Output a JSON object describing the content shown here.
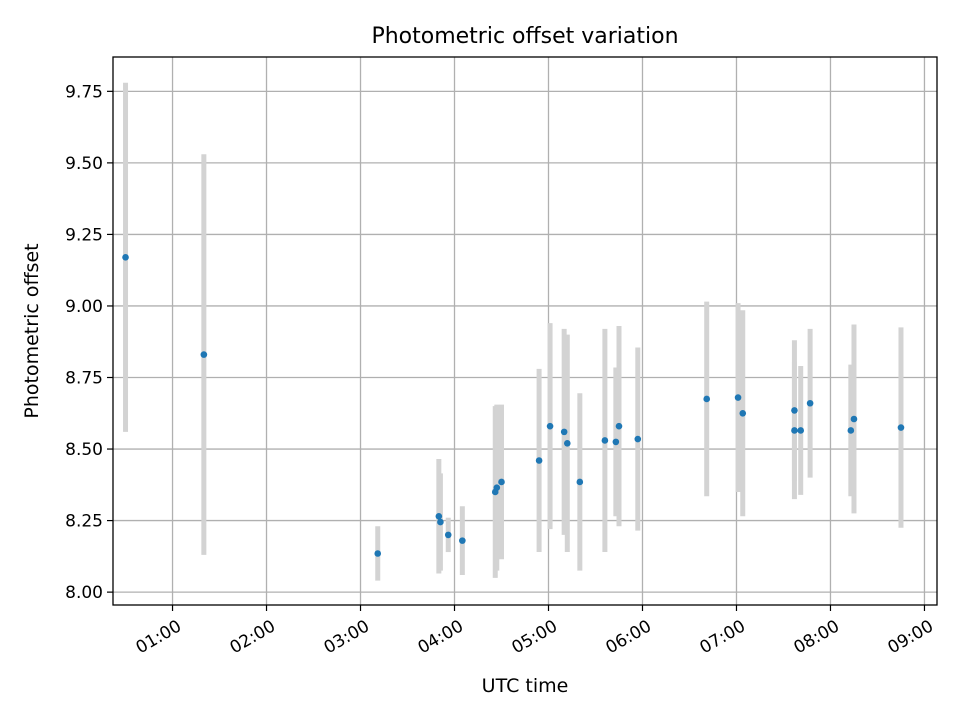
{
  "chart_data": {
    "type": "scatter",
    "title": "Photometric offset variation",
    "xlabel": "UTC time",
    "ylabel": "Photometric offset",
    "xlim": [
      "00:22",
      "09:08"
    ],
    "ylim": [
      7.955,
      9.87
    ],
    "grid": true,
    "x_ticks": [
      "01:00",
      "02:00",
      "03:00",
      "04:00",
      "05:00",
      "06:00",
      "07:00",
      "08:00",
      "09:00"
    ],
    "y_ticks": [
      "8.00",
      "8.25",
      "8.50",
      "8.75",
      "9.00",
      "9.25",
      "9.50",
      "9.75"
    ],
    "colors": {
      "point": "#1f77b4",
      "errorbar": "#d3d3d3",
      "grid": "#b0b0b0"
    },
    "series": [
      {
        "points": [
          {
            "x": "00:30",
            "y": 9.17,
            "err": 0.61
          },
          {
            "x": "01:20",
            "y": 8.83,
            "err": 0.7
          },
          {
            "x": "03:11",
            "y": 8.135,
            "err": 0.095
          },
          {
            "x": "03:50",
            "y": 8.265,
            "err": 0.2
          },
          {
            "x": "03:51",
            "y": 8.245,
            "err": 0.17
          },
          {
            "x": "03:56",
            "y": 8.2,
            "err": 0.06
          },
          {
            "x": "04:05",
            "y": 8.18,
            "err": 0.12
          },
          {
            "x": "04:26",
            "y": 8.35,
            "err": 0.3
          },
          {
            "x": "04:27",
            "y": 8.365,
            "err": 0.29
          },
          {
            "x": "04:30",
            "y": 8.385,
            "err": 0.27
          },
          {
            "x": "04:54",
            "y": 8.46,
            "err": 0.32
          },
          {
            "x": "05:01",
            "y": 8.58,
            "err": 0.36
          },
          {
            "x": "05:10",
            "y": 8.56,
            "err": 0.36
          },
          {
            "x": "05:12",
            "y": 8.52,
            "err": 0.38
          },
          {
            "x": "05:20",
            "y": 8.385,
            "err": 0.31
          },
          {
            "x": "05:36",
            "y": 8.53,
            "err": 0.39
          },
          {
            "x": "05:43",
            "y": 8.525,
            "err": 0.26
          },
          {
            "x": "05:45",
            "y": 8.58,
            "err": 0.35
          },
          {
            "x": "05:57",
            "y": 8.535,
            "err": 0.32
          },
          {
            "x": "06:41",
            "y": 8.675,
            "err": 0.34
          },
          {
            "x": "07:01",
            "y": 8.68,
            "err": 0.33
          },
          {
            "x": "07:04",
            "y": 8.625,
            "err": 0.36
          },
          {
            "x": "07:37",
            "y": 8.565,
            "err": 0.24
          },
          {
            "x": "07:37",
            "y": 8.635,
            "err": 0.245
          },
          {
            "x": "07:41",
            "y": 8.565,
            "err": 0.225
          },
          {
            "x": "07:47",
            "y": 8.66,
            "err": 0.26
          },
          {
            "x": "08:13",
            "y": 8.565,
            "err": 0.23
          },
          {
            "x": "08:15",
            "y": 8.605,
            "err": 0.33
          },
          {
            "x": "08:45",
            "y": 8.575,
            "err": 0.35
          }
        ]
      }
    ]
  }
}
